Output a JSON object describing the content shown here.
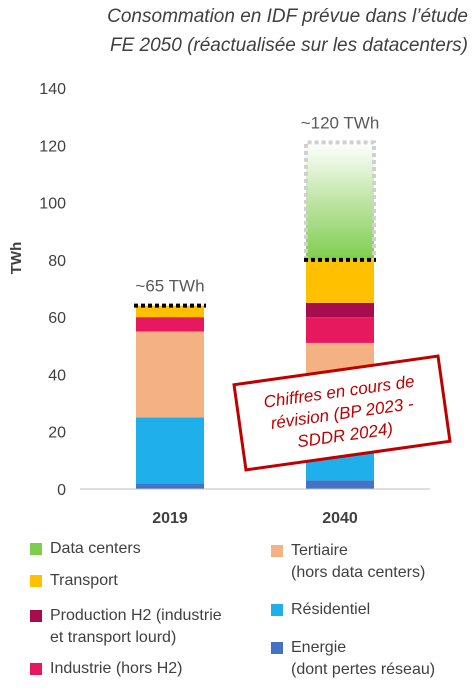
{
  "chart_data": {
    "type": "bar",
    "stacked": true,
    "title": [
      "Consommation en IDF prévue dans l’étude",
      "FE 2050 (réactualisée sur les datacenters)"
    ],
    "ylabel": "TWh",
    "xlabel": "",
    "ylim": [
      0,
      140
    ],
    "yticks": [
      0,
      20,
      40,
      60,
      80,
      100,
      120,
      140
    ],
    "categories": [
      "2019",
      "2040"
    ],
    "series": [
      {
        "name": "Energie (dont pertes réseau)",
        "color": "#4472c4",
        "values": [
          2,
          3
        ]
      },
      {
        "name": "Résidentiel",
        "color": "#1fb0ec",
        "values": [
          23,
          20
        ]
      },
      {
        "name": "Tertiaire (hors data centers)",
        "color": "#f4b183",
        "values": [
          30,
          28
        ]
      },
      {
        "name": "Industrie (hors H2)",
        "color": "#e6195f",
        "values": [
          5,
          9
        ]
      },
      {
        "name": "Production H2 (industrie et transport lourd)",
        "color": "#a50d4e",
        "values": [
          0,
          5
        ]
      },
      {
        "name": "Transport",
        "color": "#ffc000",
        "values": [
          4,
          15
        ]
      },
      {
        "name": "Data centers",
        "color": "#7fcd4f",
        "values": [
          0,
          41
        ]
      }
    ],
    "totals": [
      "~65 TWh",
      "~120 TWh"
    ],
    "stamp": [
      "Chiffres en cours de",
      "révision (BP 2023 -",
      "SDDR 2024)"
    ],
    "colors": {
      "axis": "#bfbfbf",
      "text": "#404040",
      "stamp": "#c00000"
    },
    "grid": false,
    "legend_position": "bottom"
  },
  "legend": {
    "items": [
      {
        "lines": [
          "Data centers"
        ],
        "color": "#7fcd4f"
      },
      {
        "lines": [
          "Transport"
        ],
        "color": "#ffc000"
      },
      {
        "lines": [
          "Production H2 (industrie",
          "et transport lourd)"
        ],
        "color": "#a50d4e"
      },
      {
        "lines": [
          "Industrie (hors H2)"
        ],
        "color": "#e6195f"
      },
      {
        "lines": [
          "Tertiaire",
          "(hors data centers)"
        ],
        "color": "#f4b183"
      },
      {
        "lines": [
          "Résidentiel"
        ],
        "color": "#1fb0ec"
      },
      {
        "lines": [
          "Energie",
          "(dont pertes réseau)"
        ],
        "color": "#4472c4"
      }
    ]
  }
}
